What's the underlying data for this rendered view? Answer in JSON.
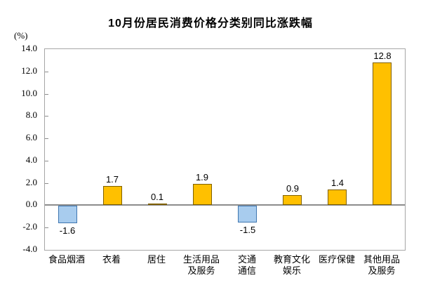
{
  "title": "10月份居民消费价格分类别同比涨跌幅",
  "chart_data": {
    "type": "bar",
    "title": "10月份居民消费价格分类别同比涨跌幅",
    "xlabel": "",
    "ylabel": "(%)",
    "ylim": [
      -4.0,
      14.0
    ],
    "ytick_step": 2.0,
    "ytick_labels": [
      "14.0",
      "12.0",
      "10.0",
      "8.0",
      "6.0",
      "4.0",
      "2.0",
      "0.0",
      "-2.0",
      "-4.0"
    ],
    "ytick_values": [
      14.0,
      12.0,
      10.0,
      8.0,
      6.0,
      4.0,
      2.0,
      0.0,
      -2.0,
      -4.0
    ],
    "categories": [
      "食品烟酒",
      "衣着",
      "居住",
      "生活用品及服务",
      "交通通信",
      "教育文化娱乐",
      "医疗保健",
      "其他用品及服务"
    ],
    "category_label_lines": [
      [
        "食品烟酒"
      ],
      [
        "衣着"
      ],
      [
        "居住"
      ],
      [
        "生活用品",
        "及服务"
      ],
      [
        "交通",
        "通信"
      ],
      [
        "教育文化",
        "娱乐"
      ],
      [
        "医疗保健"
      ],
      [
        "其他用品",
        "及服务"
      ]
    ],
    "values": [
      -1.6,
      1.7,
      0.1,
      1.9,
      -1.5,
      0.9,
      1.4,
      12.8
    ],
    "value_labels": [
      "-1.6",
      "1.7",
      "0.1",
      "1.9",
      "-1.5",
      "0.9",
      "1.4",
      "12.8"
    ],
    "grid": false,
    "legend_position": "none",
    "colors": {
      "positive_fill": "#FFC000",
      "positive_border": "#7F6000",
      "negative_fill": "#A8CCEE",
      "negative_border": "#3F76B0",
      "zero_line": "#8C8C8C",
      "frame": "#A6A6A6",
      "text": "#000000"
    }
  }
}
